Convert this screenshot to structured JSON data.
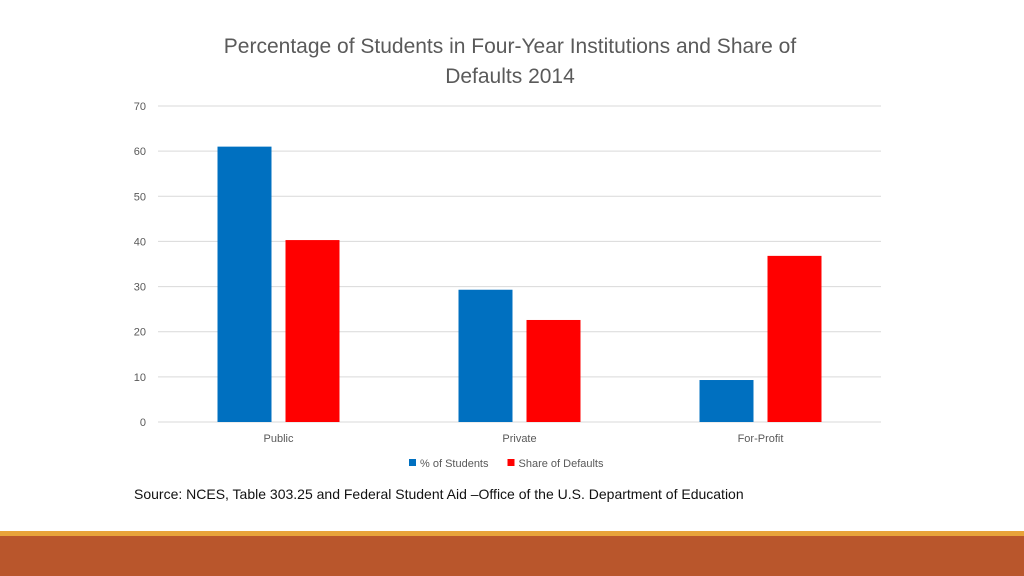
{
  "chart_data": {
    "type": "bar",
    "title": "Percentage of Students in Four-Year Institutions and Share of Defaults 2014",
    "categories": [
      "Public",
      "Private",
      "For-Profit"
    ],
    "series": [
      {
        "name": "% of Students",
        "values": [
          61,
          29.3,
          9.3
        ],
        "color": "#0070c0"
      },
      {
        "name": "Share of Defaults",
        "values": [
          40.3,
          22.6,
          36.8
        ],
        "color": "#ff0000"
      }
    ],
    "yticks": [
      "0",
      "10",
      "20",
      "30",
      "40",
      "50",
      "60",
      "70"
    ],
    "ylim": [
      0,
      70
    ],
    "grid": true,
    "legend": "bottom"
  },
  "footer": {
    "source": "Source: NCES, Table 303.25 and Federal Student Aid –Office of the U.S. Department of Education",
    "line_color": "#e8a33a",
    "bar_color": "#b9562c"
  }
}
